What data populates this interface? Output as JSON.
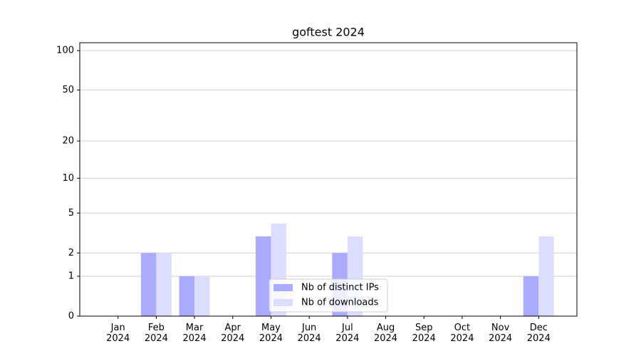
{
  "chart_data": {
    "type": "bar",
    "title": "goftest 2024",
    "categories": [
      "Jan\n2024",
      "Feb\n2024",
      "Mar\n2024",
      "Apr\n2024",
      "May\n2024",
      "Jun\n2024",
      "Jul\n2024",
      "Aug\n2024",
      "Sep\n2024",
      "Oct\n2024",
      "Nov\n2024",
      "Dec\n2024"
    ],
    "series": [
      {
        "name": "Nb of distinct IPs",
        "color": "#aaaaff",
        "values": [
          0,
          2,
          1,
          0,
          3,
          0,
          2,
          0,
          0,
          0,
          0,
          1
        ]
      },
      {
        "name": "Nb of downloads",
        "color": "#ddddff",
        "values": [
          0,
          2,
          1,
          0,
          4,
          0,
          3,
          0,
          0,
          0,
          0,
          3
        ]
      }
    ],
    "yscale": "log1p",
    "ylim": [
      0,
      115
    ],
    "yticks": [
      0,
      1,
      2,
      5,
      10,
      20,
      50,
      100
    ],
    "grid": true,
    "legend": "lower center"
  }
}
